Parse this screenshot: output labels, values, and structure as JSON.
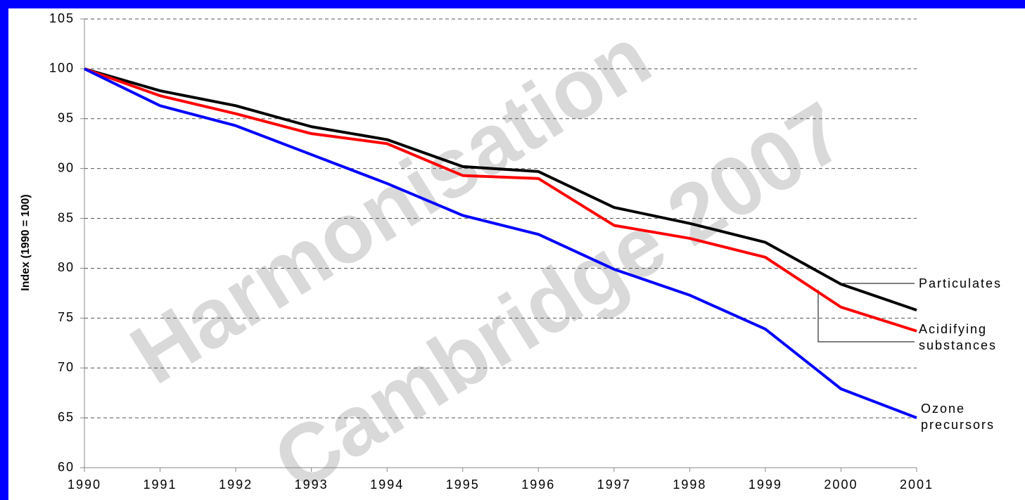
{
  "chart_data": {
    "type": "line",
    "y_axis_label": "Index (1990 = 100)",
    "watermark": [
      "Harmonisation",
      "Cambridge 2007"
    ],
    "x": [
      1990,
      1991,
      1992,
      1993,
      1994,
      1995,
      1996,
      1997,
      1998,
      1999,
      2000,
      2001
    ],
    "xlim": [
      1990,
      2001
    ],
    "xticks": [
      1990,
      1991,
      1992,
      1993,
      1994,
      1995,
      1996,
      1997,
      1998,
      1999,
      2000,
      2001
    ],
    "ylim": [
      60,
      105
    ],
    "yticks": [
      60,
      65,
      70,
      75,
      80,
      85,
      90,
      95,
      100,
      105
    ],
    "grid": true,
    "series": [
      {
        "name": "Particulates",
        "color": "#000000",
        "values": [
          100,
          97.8,
          96.3,
          94.2,
          92.9,
          90.2,
          89.7,
          86.1,
          84.5,
          82.6,
          78.4,
          75.8
        ]
      },
      {
        "name": "Acidifying substances",
        "color": "#ff0000",
        "values": [
          100,
          97.3,
          95.5,
          93.5,
          92.5,
          89.3,
          89.0,
          84.3,
          83.0,
          81.1,
          76.1,
          73.7
        ]
      },
      {
        "name": "Ozone precursors",
        "color": "#0000ff",
        "values": [
          100,
          96.3,
          94.3,
          91.4,
          88.5,
          85.3,
          83.4,
          79.9,
          77.3,
          73.9,
          67.9,
          65.0
        ]
      }
    ]
  }
}
